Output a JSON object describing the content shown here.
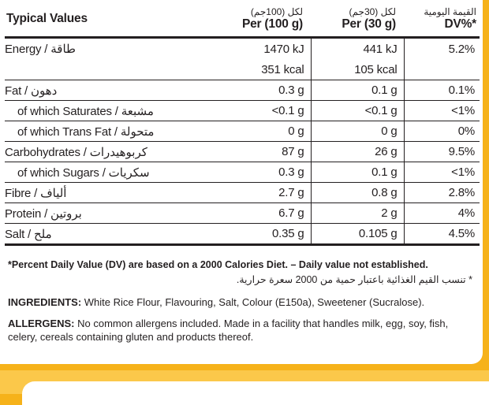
{
  "header": {
    "label": "Typical Values",
    "per100_ar": "لكل (100جم)",
    "per100_en": "Per (100 g)",
    "per30_ar": "لكل (30جم)",
    "per30_en": "Per (30 g)",
    "dv_ar": "القيمة اليومية",
    "dv_en": "DV%*"
  },
  "rows": [
    {
      "label": "Energy / طاقة",
      "v100": "1470 kJ",
      "v30": "441 kJ",
      "dv": "5.2%"
    },
    {
      "label": "",
      "v100": "351 kcal",
      "v30": "105 kcal",
      "dv": ""
    },
    {
      "label": "Fat / دهون",
      "v100": "0.3 g",
      "v30": "0.1 g",
      "dv": "0.1%"
    },
    {
      "label": "of which Saturates / مشبعة",
      "v100": "<0.1 g",
      "v30": "<0.1 g",
      "dv": "<1%"
    },
    {
      "label": "of which Trans Fat / متحولة",
      "v100": "0 g",
      "v30": "0 g",
      "dv": "0%"
    },
    {
      "label": "Carbohydrates / كربوهيدرات",
      "v100": "87 g",
      "v30": "26 g",
      "dv": "9.5%"
    },
    {
      "label": "of which Sugars / سكريات",
      "v100": "0.3 g",
      "v30": "0.1 g",
      "dv": "<1%"
    },
    {
      "label": "Fibre / ألياف",
      "v100": "2.7 g",
      "v30": "0.8 g",
      "dv": "2.8%"
    },
    {
      "label": "Protein / بروتين",
      "v100": "6.7 g",
      "v30": "2 g",
      "dv": "4%"
    },
    {
      "label": "Salt / ملح",
      "v100": "0.35 g",
      "v30": "0.105 g",
      "dv": "4.5%"
    }
  ],
  "notes": {
    "dv_en": "*Percent Daily Value (DV) are based on a 2000 Calories Diet. – Daily value not established.",
    "dv_ar": "* تنسب القيم الغذائية باعتبار حمية من 2000 سعرة حرارية.",
    "ingredients_label": "INGREDIENTS:",
    "ingredients_text": " White Rice Flour, Flavouring, Salt, Colour (E150a), Sweetener (Sucralose).",
    "allergens_label": "ALLERGENS:",
    "allergens_text": " No common allergens included. Made in a facility that handles milk, egg, soy, fish, celery, cereals containing gluten and products thereof."
  },
  "colors": {
    "background": "#f6b21a",
    "panel": "#ffffff",
    "text": "#231f20"
  }
}
